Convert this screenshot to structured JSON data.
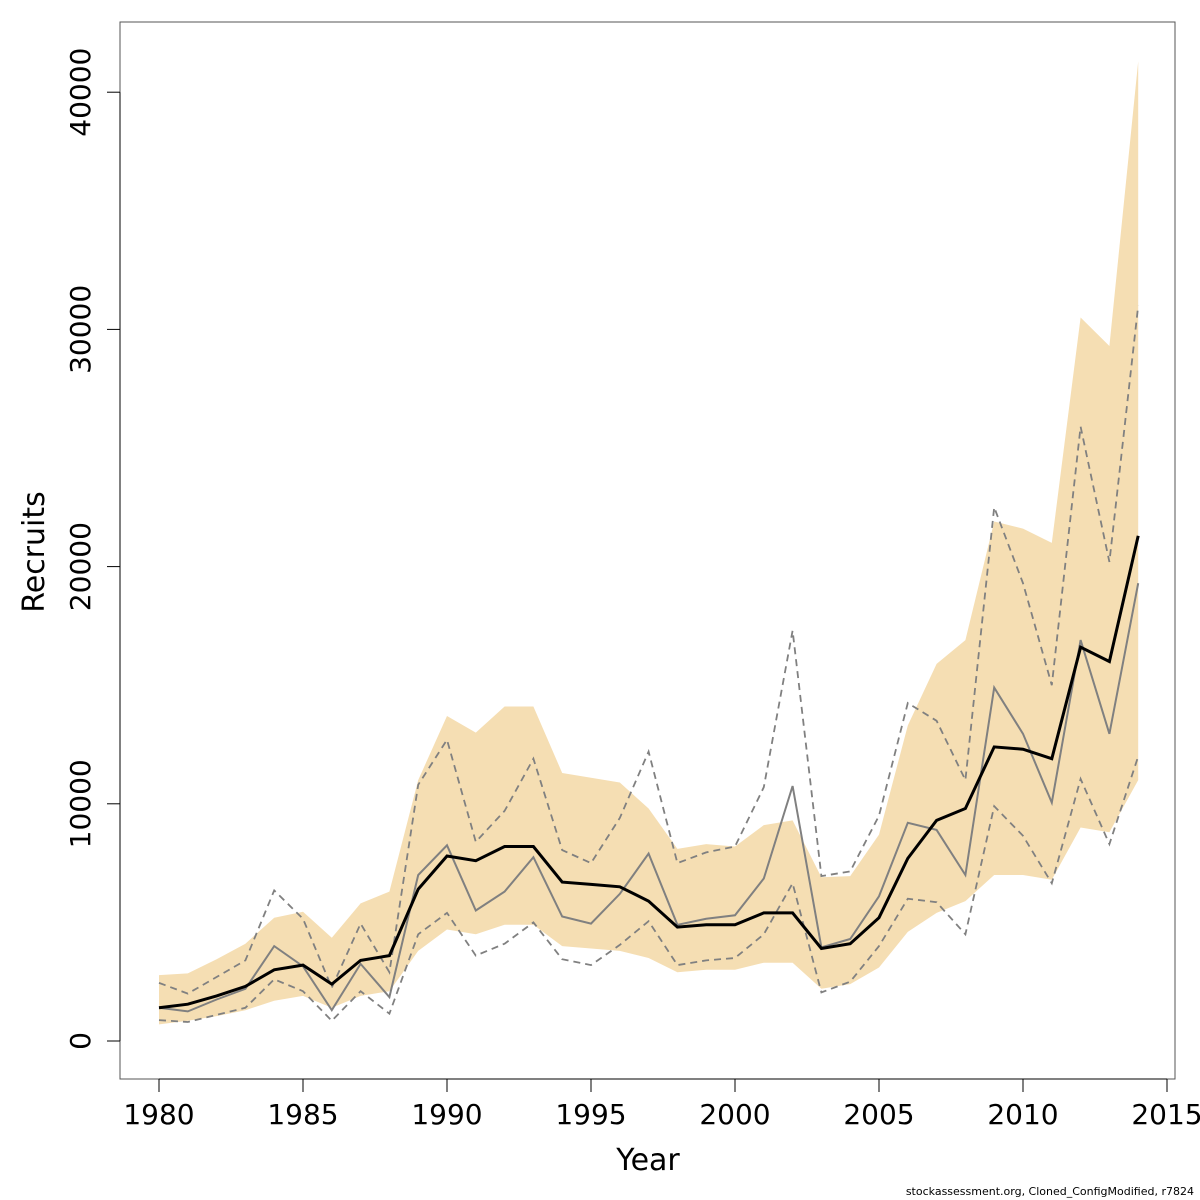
{
  "chart_data": {
    "type": "line",
    "xlabel": "Year",
    "ylabel": "Recruits",
    "xlim": [
      1980,
      2014
    ],
    "ylim": [
      0,
      41200
    ],
    "x_ticks": [
      1980,
      1985,
      1990,
      1995,
      2000,
      2005,
      2010,
      2015
    ],
    "y_ticks": [
      0,
      10000,
      20000,
      30000,
      40000
    ],
    "grid": false,
    "band_color": "#f5deb3",
    "x": [
      1980,
      1981,
      1982,
      1983,
      1984,
      1985,
      1986,
      1987,
      1988,
      1989,
      1990,
      1991,
      1992,
      1993,
      1994,
      1995,
      1996,
      1997,
      1998,
      1999,
      2000,
      2001,
      2002,
      2003,
      2004,
      2005,
      2006,
      2007,
      2008,
      2009,
      2010,
      2011,
      2012,
      2013,
      2014
    ],
    "series": [
      {
        "role": "confidence-band-upper",
        "color": "#f5deb3",
        "values": [
          2780,
          2850,
          3450,
          4100,
          5200,
          5450,
          4350,
          5800,
          6300,
          11000,
          13700,
          13000,
          14100,
          14100,
          11300,
          11100,
          10900,
          9800,
          8100,
          8300,
          8200,
          9100,
          9300,
          6900,
          6950,
          8700,
          13300,
          15900,
          16900,
          21900,
          21600,
          21000,
          30500,
          29300,
          41300
        ]
      },
      {
        "role": "confidence-band-lower",
        "color": "#f5deb3",
        "values": [
          700,
          850,
          1050,
          1300,
          1700,
          1900,
          1400,
          1900,
          2100,
          3800,
          4700,
          4500,
          4900,
          4900,
          4000,
          3900,
          3800,
          3500,
          2900,
          3000,
          3000,
          3300,
          3300,
          2200,
          2400,
          3100,
          4600,
          5400,
          5900,
          7000,
          7000,
          6800,
          9000,
          8800,
          11000
        ]
      },
      {
        "role": "estimate",
        "color": "#000000",
        "values": [
          1400,
          1550,
          1900,
          2300,
          3000,
          3200,
          2400,
          3400,
          3600,
          6400,
          7800,
          7600,
          8200,
          8200,
          6700,
          6600,
          6500,
          5900,
          4800,
          4900,
          4900,
          5400,
          5400,
          3900,
          4100,
          5200,
          7700,
          9300,
          9800,
          12400,
          12300,
          11900,
          16600,
          16000,
          21300
        ]
      },
      {
        "role": "alternate-run",
        "color": "#808080",
        "values": [
          1400,
          1250,
          1750,
          2200,
          4000,
          3150,
          1300,
          3250,
          1850,
          7000,
          8250,
          5500,
          6300,
          7750,
          5250,
          4950,
          6200,
          7900,
          4900,
          5150,
          5300,
          6850,
          10750,
          3950,
          4300,
          6100,
          9200,
          8900,
          7000,
          14900,
          12950,
          10050,
          16900,
          12950,
          19300
        ]
      },
      {
        "role": "alternate-run-upper",
        "color": "#808080",
        "values": [
          2450,
          2000,
          2700,
          3400,
          6350,
          5150,
          2250,
          4950,
          2900,
          10800,
          12700,
          8400,
          9700,
          11900,
          8050,
          7500,
          9400,
          12200,
          7500,
          7950,
          8200,
          10700,
          17300,
          6950,
          7150,
          9500,
          14250,
          13500,
          11000,
          22500,
          19300,
          15000,
          25900,
          20200,
          31000
        ]
      },
      {
        "role": "alternate-run-lower",
        "color": "#808080",
        "values": [
          880,
          800,
          1100,
          1400,
          2600,
          2100,
          850,
          2100,
          1150,
          4500,
          5400,
          3600,
          4100,
          5000,
          3450,
          3200,
          4050,
          5050,
          3200,
          3400,
          3500,
          4500,
          6650,
          2050,
          2500,
          4000,
          6000,
          5850,
          4500,
          9900,
          8650,
          6650,
          11050,
          8300,
          12000
        ]
      }
    ]
  },
  "footer": {
    "credit": "stockassessment.org, Cloned_ConfigModified, r7824"
  }
}
